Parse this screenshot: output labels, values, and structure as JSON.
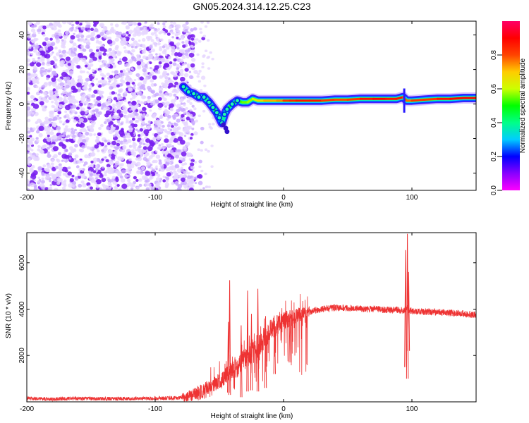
{
  "title": "GN05.2024.314.12.25.C23",
  "chart_data": [
    {
      "type": "heatmap",
      "xlabel": "Height of straight line (km)",
      "ylabel": "Frequency (Hz)",
      "xlim": [
        -200,
        150
      ],
      "ylim": [
        -50,
        48
      ],
      "xticks": [
        -200,
        -100,
        0,
        100
      ],
      "yticks": [
        -40,
        -20,
        0,
        20,
        40
      ],
      "colorbar": {
        "label": "Normalized spectral amplitude",
        "range": [
          0,
          1
        ],
        "ticks": [
          0.0,
          0.2,
          0.4,
          0.6,
          0.8
        ],
        "tick_labels": [
          "0.0",
          "0.2",
          "0.4",
          "0.6",
          "0.8"
        ],
        "colormap": [
          "#ff00ff",
          "#8800ff",
          "#0000ff",
          "#00ccff",
          "#00ff88",
          "#00ff00",
          "#ccff00",
          "#ffcc00",
          "#ff4400",
          "#ff0000",
          "#ff0066"
        ]
      },
      "noise_region": {
        "x": [
          -200,
          -70
        ],
        "y": [
          -50,
          48
        ]
      },
      "ridge": [
        [
          -78,
          10,
          0.35
        ],
        [
          -74,
          7,
          0.45
        ],
        [
          -70,
          6,
          0.5
        ],
        [
          -66,
          4,
          0.45
        ],
        [
          -62,
          4,
          0.4
        ],
        [
          -58,
          1,
          0.4
        ],
        [
          -55,
          -2,
          0.45
        ],
        [
          -52,
          -5,
          0.5
        ],
        [
          -50,
          -8,
          0.4
        ],
        [
          -48,
          -11,
          0.35
        ],
        [
          -46,
          -6,
          0.4
        ],
        [
          -44,
          -3,
          0.45
        ],
        [
          -40,
          0,
          0.5
        ],
        [
          -36,
          2,
          0.5
        ],
        [
          -32,
          1,
          0.55
        ],
        [
          -28,
          1,
          0.55
        ],
        [
          -24,
          3,
          0.6
        ],
        [
          -20,
          2,
          0.65
        ],
        [
          -15,
          2,
          0.7
        ],
        [
          -10,
          2,
          0.75
        ],
        [
          -5,
          2,
          0.7
        ],
        [
          0,
          2,
          0.8
        ],
        [
          5,
          2,
          0.85
        ],
        [
          10,
          2,
          0.85
        ],
        [
          20,
          2,
          0.9
        ],
        [
          30,
          2,
          0.85
        ],
        [
          40,
          2.5,
          0.8
        ],
        [
          50,
          2.5,
          0.8
        ],
        [
          60,
          3,
          0.85
        ],
        [
          70,
          3,
          0.9
        ],
        [
          80,
          3,
          0.9
        ],
        [
          88,
          3,
          0.85
        ],
        [
          93,
          4,
          0.9
        ],
        [
          96,
          2,
          0.7
        ],
        [
          100,
          2,
          0.85
        ],
        [
          110,
          2.5,
          0.8
        ],
        [
          120,
          3,
          0.85
        ],
        [
          130,
          3,
          0.9
        ],
        [
          140,
          3.5,
          0.9
        ],
        [
          150,
          3.5,
          0.9
        ]
      ],
      "low_tail": [
        [
          -47,
          -12
        ],
        [
          -45,
          -14
        ],
        [
          -44,
          -16
        ]
      ]
    },
    {
      "type": "line",
      "xlabel": "Height of straight line (km)",
      "ylabel": "SNR (10 * v/v)",
      "xlim": [
        -200,
        150
      ],
      "ylim": [
        0,
        7300
      ],
      "xticks": [
        -200,
        -100,
        0,
        100
      ],
      "yticks": [
        2000,
        4000,
        6000
      ],
      "color": "#ee3333",
      "x": [
        -200,
        -180,
        -160,
        -140,
        -120,
        -100,
        -90,
        -80,
        -75,
        -70,
        -65,
        -60,
        -55,
        -50,
        -45,
        -40,
        -35,
        -30,
        -25,
        -20,
        -15,
        -10,
        -5,
        0,
        5,
        10,
        15,
        20,
        25,
        30,
        35,
        40,
        45,
        50,
        55,
        60,
        65,
        70,
        75,
        80,
        85,
        90,
        93,
        95,
        96,
        97,
        98,
        100,
        105,
        110,
        115,
        120,
        125,
        130,
        135,
        140,
        145,
        150
      ],
      "y": [
        150,
        120,
        150,
        130,
        140,
        150,
        160,
        180,
        230,
        300,
        420,
        560,
        720,
        900,
        1100,
        1320,
        1550,
        1850,
        2150,
        2450,
        2750,
        3050,
        3250,
        3450,
        3580,
        3700,
        3800,
        3880,
        3950,
        4000,
        4030,
        4050,
        4060,
        4040,
        4030,
        4020,
        4000,
        4000,
        3990,
        3970,
        3960,
        3960,
        3950,
        4000,
        4100,
        4000,
        3950,
        3920,
        3900,
        3900,
        3880,
        3870,
        3860,
        3840,
        3820,
        3800,
        3780,
        3760
      ],
      "spikes": [
        {
          "x": -42,
          "y": 5250,
          "min": 300
        },
        {
          "x": -43,
          "y": 3450,
          "min": 400
        },
        {
          "x": -33,
          "y": 3300,
          "min": 200
        },
        {
          "x": -28,
          "y": 4800,
          "min": 450
        },
        {
          "x": -25,
          "y": 3800,
          "min": 500
        },
        {
          "x": -20,
          "y": 4880,
          "min": 450
        },
        {
          "x": -14,
          "y": 3700,
          "min": 600
        },
        {
          "x": -7,
          "y": 3500,
          "min": 1200
        },
        {
          "x": 5,
          "y": 3950,
          "min": 1700
        },
        {
          "x": 95,
          "y": 6550,
          "min": 1500
        },
        {
          "x": 96.5,
          "y": 7250,
          "min": 1000
        },
        {
          "x": 97.5,
          "y": 5600,
          "min": 2200
        }
      ]
    }
  ]
}
